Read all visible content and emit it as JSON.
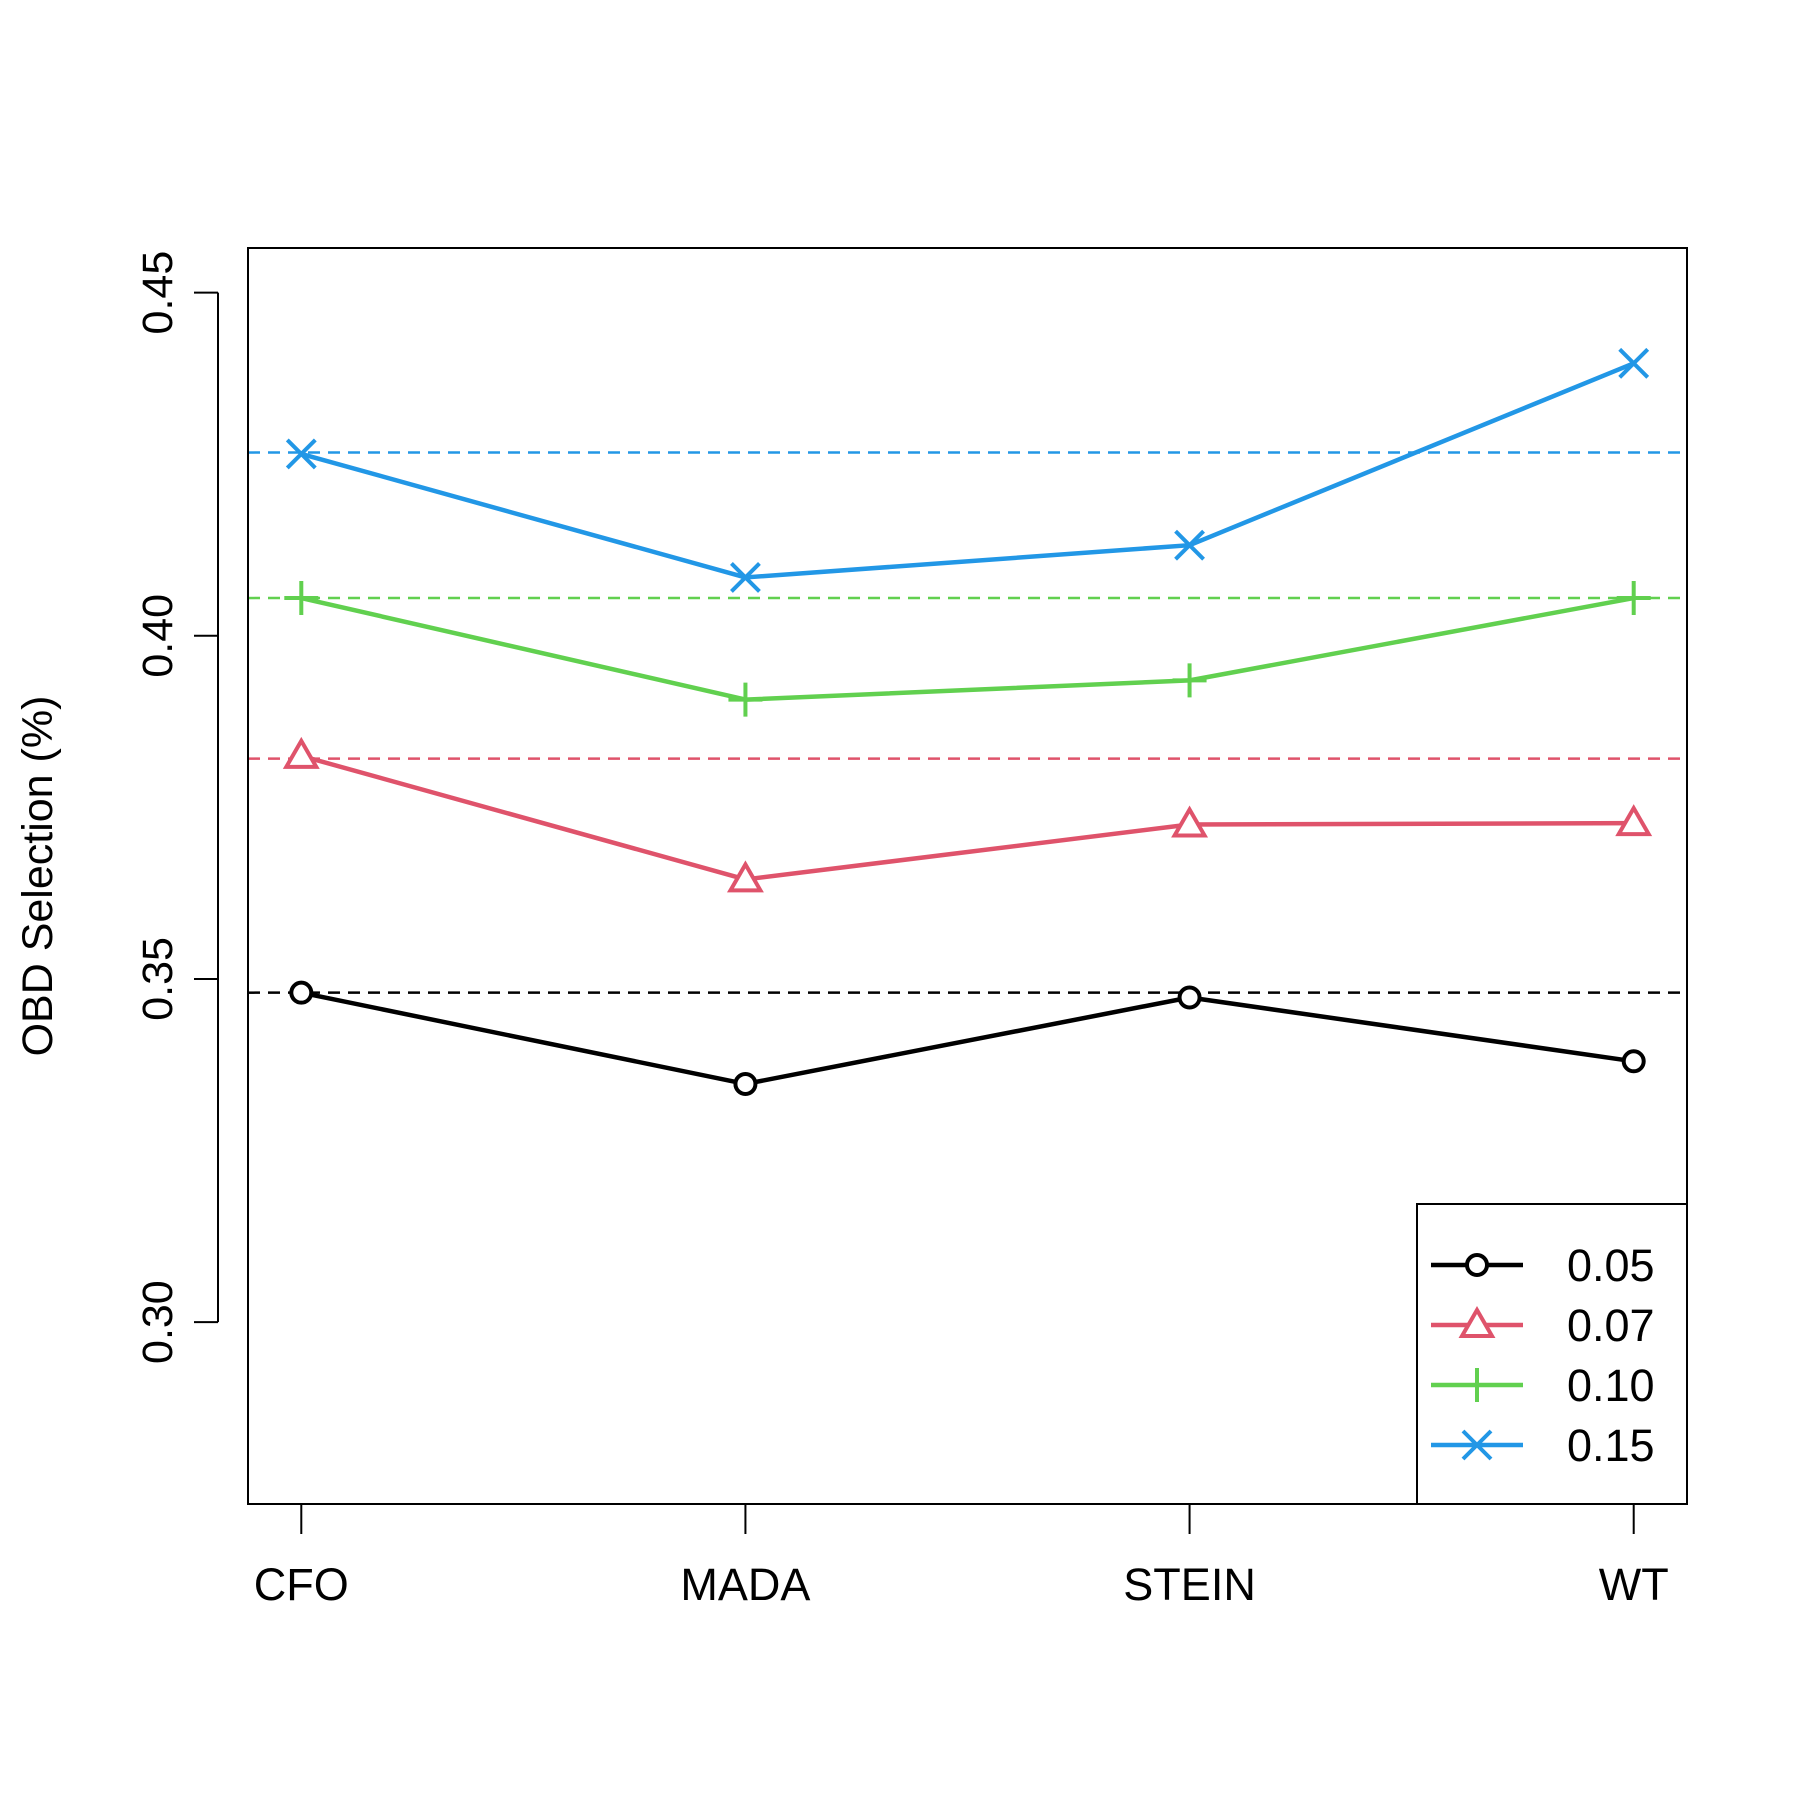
{
  "chart_data": {
    "type": "line",
    "title": "",
    "xlabel": "",
    "ylabel": "OBD Selection (%)",
    "categories": [
      "CFO",
      "MADA",
      "STEIN",
      "WT"
    ],
    "ylim": [
      0.2735,
      0.4565
    ],
    "yticks": [
      "0.30",
      "0.35",
      "0.40",
      "0.45"
    ],
    "grid": false,
    "legend_position": "bottom-right",
    "series": [
      {
        "name": "0.05",
        "color": "#000000",
        "marker": "circle",
        "values": [
          0.348,
          0.3347,
          0.3473,
          0.338
        ],
        "reference": 0.348
      },
      {
        "name": "0.07",
        "color": "#DF536B",
        "marker": "triangle",
        "values": [
          0.3825,
          0.3645,
          0.3725,
          0.3727
        ],
        "reference": 0.3821
      },
      {
        "name": "0.10",
        "color": "#61D04F",
        "marker": "plus",
        "values": [
          0.4055,
          0.3907,
          0.3935,
          0.4055
        ],
        "reference": 0.4055
      },
      {
        "name": "0.15",
        "color": "#2297E6",
        "marker": "cross",
        "values": [
          0.4265,
          0.4085,
          0.4132,
          0.4397
        ],
        "reference": 0.4267
      }
    ]
  }
}
